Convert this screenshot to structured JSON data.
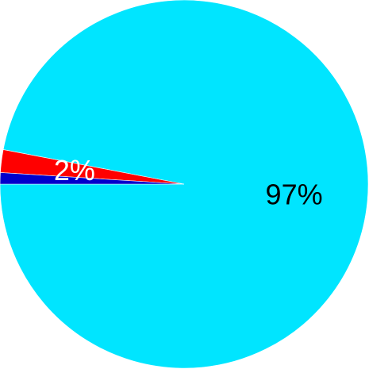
{
  "chart_data": {
    "type": "pie",
    "title": "",
    "start_angle_deg": -180,
    "direction": "counterclockwise",
    "slices": [
      {
        "value": 97,
        "label": "97%",
        "color": "#00e5ff",
        "label_color": "#000000",
        "show_label": true
      },
      {
        "value": 2,
        "label": "2%",
        "color": "#ff0000",
        "label_color": "#ffffff",
        "show_label": true
      },
      {
        "value": 1,
        "label": "1%",
        "color": "#0000cc",
        "label_color": "#ffffff",
        "show_label": false
      }
    ]
  }
}
